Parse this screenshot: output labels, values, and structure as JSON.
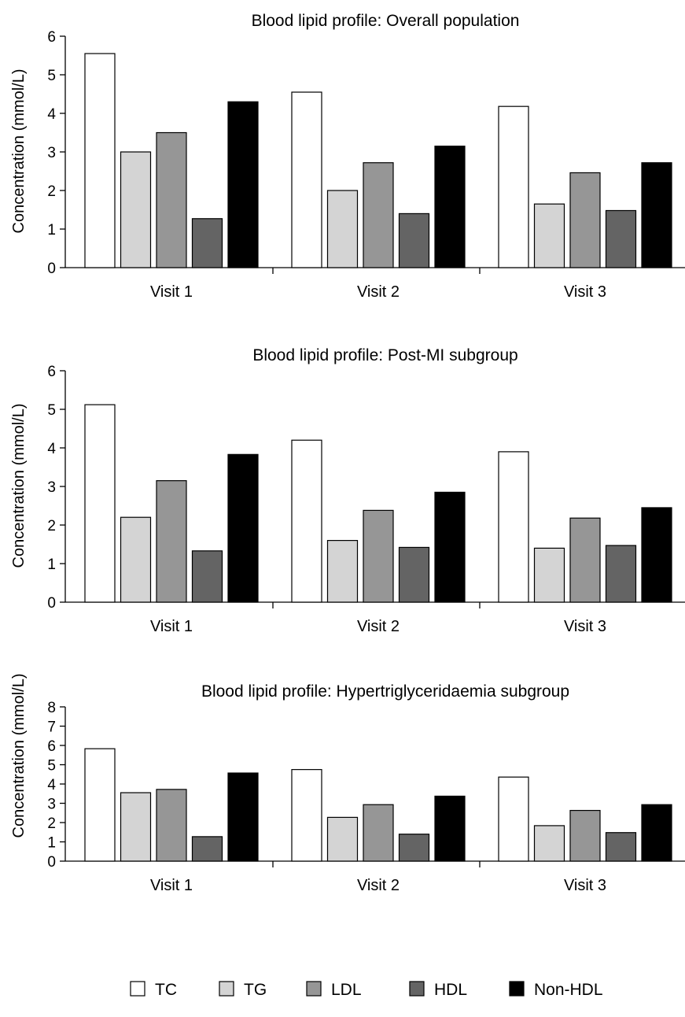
{
  "chart_data": [
    {
      "type": "bar",
      "title": "Blood lipid profile: Overall population",
      "xlabel": "",
      "ylabel": "Concentration (mmol/L)",
      "ylim": [
        0,
        6
      ],
      "yticks": [
        "0",
        "1",
        "2",
        "3",
        "4",
        "5",
        "6"
      ],
      "categories": [
        "Visit 1",
        "Visit 2",
        "Visit 3"
      ],
      "series": [
        {
          "name": "TC",
          "values": [
            5.55,
            4.55,
            4.18
          ]
        },
        {
          "name": "TG",
          "values": [
            3.0,
            2.0,
            1.65
          ]
        },
        {
          "name": "LDL",
          "values": [
            3.5,
            2.72,
            2.46
          ]
        },
        {
          "name": "HDL",
          "values": [
            1.27,
            1.4,
            1.48
          ]
        },
        {
          "name": "Non-HDL",
          "values": [
            4.3,
            3.15,
            2.72
          ]
        }
      ]
    },
    {
      "type": "bar",
      "title": "Blood lipid profile: Post-MI subgroup",
      "xlabel": "",
      "ylabel": "Concentration (mmol/L)",
      "ylim": [
        0,
        6
      ],
      "yticks": [
        "0",
        "1",
        "2",
        "3",
        "4",
        "5",
        "6"
      ],
      "categories": [
        "Visit 1",
        "Visit 2",
        "Visit 3"
      ],
      "series": [
        {
          "name": "TC",
          "values": [
            5.12,
            4.2,
            3.9
          ]
        },
        {
          "name": "TG",
          "values": [
            2.2,
            1.6,
            1.4
          ]
        },
        {
          "name": "LDL",
          "values": [
            3.15,
            2.38,
            2.18
          ]
        },
        {
          "name": "HDL",
          "values": [
            1.33,
            1.42,
            1.47
          ]
        },
        {
          "name": "Non-HDL",
          "values": [
            3.83,
            2.85,
            2.45
          ]
        }
      ]
    },
    {
      "type": "bar",
      "title": "Blood lipid profile: Hypertriglyceridaemia subgroup",
      "xlabel": "",
      "ylabel": "Concentration (mmol/L)",
      "ylim": [
        0,
        8
      ],
      "yticks": [
        "0",
        "1",
        "2",
        "3",
        "4",
        "5",
        "6",
        "7",
        "8"
      ],
      "categories": [
        "Visit 1",
        "Visit 2",
        "Visit 3"
      ],
      "series": [
        {
          "name": "TC",
          "values": [
            5.83,
            4.75,
            4.36
          ]
        },
        {
          "name": "TG",
          "values": [
            3.55,
            2.27,
            1.84
          ]
        },
        {
          "name": "LDL",
          "values": [
            3.72,
            2.93,
            2.63
          ]
        },
        {
          "name": "HDL",
          "values": [
            1.27,
            1.4,
            1.48
          ]
        },
        {
          "name": "Non-HDL",
          "values": [
            4.57,
            3.37,
            2.93
          ]
        }
      ]
    }
  ],
  "legend": {
    "placement": "bottom",
    "items": [
      {
        "name": "TC",
        "color": "#ffffff"
      },
      {
        "name": "TG",
        "color": "#d4d4d4"
      },
      {
        "name": "LDL",
        "color": "#969696"
      },
      {
        "name": "HDL",
        "color": "#646464"
      },
      {
        "name": "Non-HDL",
        "color": "#000000"
      }
    ]
  },
  "colors": {
    "TC": "#ffffff",
    "TG": "#d4d4d4",
    "LDL": "#969696",
    "HDL": "#646464",
    "Non-HDL": "#000000"
  }
}
